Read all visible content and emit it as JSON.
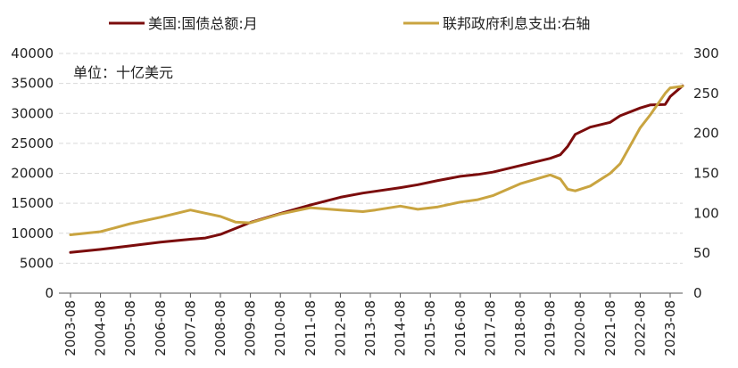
{
  "chart_data": {
    "type": "line",
    "annotation": "单位：十亿美元",
    "legend": {
      "position": "top",
      "entries": [
        "美国:国债总额:月",
        "联邦政府利息支出:右轴"
      ]
    },
    "colors": {
      "debt": "#7b0c0c",
      "interest": "#c9a440"
    },
    "x_tick_labels": [
      "2003-08",
      "2004-08",
      "2005-08",
      "2006-08",
      "2007-08",
      "2008-08",
      "2009-08",
      "2010-08",
      "2011-08",
      "2012-08",
      "2013-08",
      "2014-08",
      "2015-08",
      "2016-08",
      "2017-08",
      "2018-08",
      "2019-08",
      "2020-08",
      "2021-08",
      "2022-08",
      "2023-08"
    ],
    "left_axis": {
      "ylim": [
        0,
        40000
      ],
      "ticks": [
        "0",
        "5000",
        "10000",
        "15000",
        "20000",
        "25000",
        "30000",
        "35000",
        "40000"
      ]
    },
    "right_axis": {
      "ylim": [
        0,
        300
      ],
      "ticks": [
        "0",
        "50",
        "100",
        "150",
        "200",
        "250",
        "300"
      ]
    },
    "grid": true,
    "series": [
      {
        "name": "美国:国债总额:月",
        "axis": "left",
        "x": [
          "2003-08",
          "2004-08",
          "2005-08",
          "2006-08",
          "2007-08",
          "2008-02",
          "2008-08",
          "2009-02",
          "2009-08",
          "2010-08",
          "2011-08",
          "2012-08",
          "2013-05",
          "2013-10",
          "2014-08",
          "2015-03",
          "2015-11",
          "2016-08",
          "2017-03",
          "2017-09",
          "2018-08",
          "2019-08",
          "2019-12",
          "2020-03",
          "2020-06",
          "2020-12",
          "2021-08",
          "2021-12",
          "2022-08",
          "2022-12",
          "2023-06",
          "2023-08",
          "2024-01"
        ],
        "values": [
          6800,
          7300,
          7900,
          8500,
          9000,
          9200,
          9800,
          10800,
          11800,
          13300,
          14700,
          16000,
          16700,
          17000,
          17600,
          18100,
          18800,
          19500,
          19800,
          20200,
          21300,
          22500,
          23100,
          24500,
          26500,
          27700,
          28500,
          29600,
          30900,
          31400,
          31500,
          32800,
          34600
        ]
      },
      {
        "name": "联邦政府利息支出:右轴",
        "axis": "right",
        "x": [
          "2003-08",
          "2004-08",
          "2005-08",
          "2006-08",
          "2007-08",
          "2008-02",
          "2008-08",
          "2009-02",
          "2009-08",
          "2010-08",
          "2011-08",
          "2012-08",
          "2013-05",
          "2013-10",
          "2014-08",
          "2015-03",
          "2015-11",
          "2016-08",
          "2017-03",
          "2017-09",
          "2018-08",
          "2019-08",
          "2019-12",
          "2020-03",
          "2020-06",
          "2020-12",
          "2021-08",
          "2021-12",
          "2022-08",
          "2022-12",
          "2023-06",
          "2023-08",
          "2024-01"
        ],
        "values": [
          73,
          77,
          87,
          95,
          104,
          100,
          96,
          89,
          88,
          99,
          107,
          104,
          102,
          104,
          109,
          105,
          108,
          114,
          117,
          122,
          137,
          148,
          143,
          130,
          128,
          134,
          150,
          162,
          207,
          223,
          250,
          257,
          259
        ]
      }
    ]
  }
}
